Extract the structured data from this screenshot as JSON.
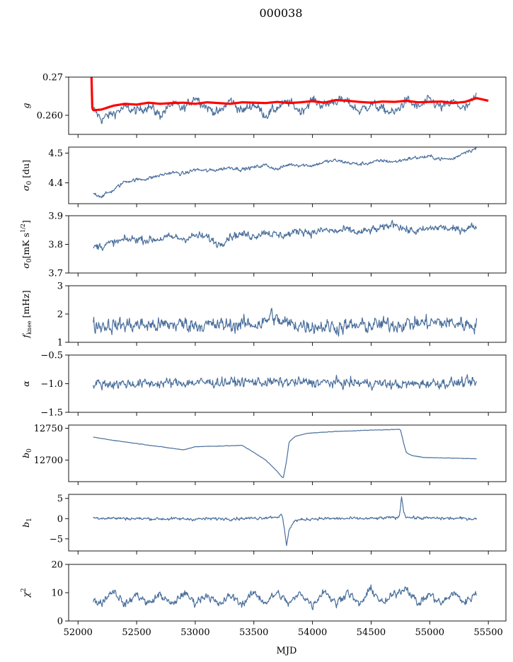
{
  "figure_title": "000038",
  "chart_data": {
    "type": "line",
    "xlabel": "MJD",
    "xlim": [
      51920,
      55650
    ],
    "xticks": [
      52000,
      52500,
      53000,
      53500,
      54000,
      54500,
      55000,
      55500
    ],
    "panels": [
      {
        "id": "g",
        "ylabel": "g",
        "ylim": [
          0.255,
          0.27
        ],
        "yticks": [
          {
            "v": 0.26,
            "t": "0.260"
          },
          {
            "v": 0.27,
            "t": "0.27"
          }
        ],
        "series": [
          {
            "style": "noisy",
            "color": "#4a6f9c",
            "x": [
              52130,
              52200,
              52300,
              52400,
              52500,
              52600,
              52700,
              52800,
              52900,
              53000,
              53100,
              53200,
              53300,
              53400,
              53500,
              53600,
              53700,
              53800,
              53900,
              54000,
              54100,
              54200,
              54300,
              54400,
              54500,
              54600,
              54700,
              54800,
              54900,
              55000,
              55100,
              55200,
              55300,
              55400
            ],
            "y": [
              0.2615,
              0.259,
              0.2605,
              0.262,
              0.261,
              0.2625,
              0.26,
              0.263,
              0.2615,
              0.265,
              0.262,
              0.2605,
              0.264,
              0.261,
              0.263,
              0.26,
              0.262,
              0.2635,
              0.261,
              0.264,
              0.2625,
              0.264,
              0.2635,
              0.261,
              0.263,
              0.2615,
              0.2605,
              0.264,
              0.262,
              0.264,
              0.262,
              0.2635,
              0.2615,
              0.265
            ],
            "noise": 0.0008
          },
          {
            "style": "smooth",
            "color": "#ff0000",
            "x": [
              52115,
              52118,
              52125,
              52135,
              52160,
              52200,
              52300,
              52400,
              52500,
              52600,
              52700,
              52800,
              52900,
              53000,
              53100,
              53200,
              53300,
              53400,
              53500,
              53600,
              53700,
              53800,
              53900,
              54000,
              54100,
              54200,
              54300,
              54400,
              54500,
              54600,
              54700,
              54800,
              54900,
              55000,
              55100,
              55200,
              55300,
              55400,
              55500
            ],
            "y": [
              0.27,
              0.2625,
              0.2615,
              0.2613,
              0.2614,
              0.2615,
              0.2625,
              0.263,
              0.2628,
              0.2633,
              0.263,
              0.2632,
              0.2633,
              0.263,
              0.2634,
              0.2632,
              0.263,
              0.2634,
              0.2633,
              0.2632,
              0.2635,
              0.2632,
              0.2634,
              0.2637,
              0.2633,
              0.264,
              0.2638,
              0.2635,
              0.2633,
              0.2636,
              0.2635,
              0.2638,
              0.2634,
              0.2635,
              0.2636,
              0.2632,
              0.2635,
              0.2645,
              0.2638
            ]
          }
        ]
      },
      {
        "id": "sigma0-du",
        "ylabel": "σ0 [du]",
        "ylim": [
          4.33,
          4.52
        ],
        "yticks": [
          {
            "v": 4.4,
            "t": "4.4"
          },
          {
            "v": 4.5,
            "t": "4.5"
          }
        ],
        "series": [
          {
            "style": "noisy",
            "color": "#4a6f9c",
            "x": [
              52130,
              52200,
              52300,
              52400,
              52500,
              52600,
              52700,
              52800,
              52900,
              53000,
              53100,
              53200,
              53300,
              53400,
              53500,
              53600,
              53700,
              53800,
              53900,
              54000,
              54100,
              54200,
              54300,
              54400,
              54500,
              54600,
              54700,
              54800,
              54900,
              55000,
              55100,
              55200,
              55300,
              55400
            ],
            "y": [
              4.365,
              4.355,
              4.375,
              4.405,
              4.41,
              4.415,
              4.425,
              4.435,
              4.43,
              4.445,
              4.44,
              4.445,
              4.452,
              4.445,
              4.452,
              4.46,
              4.445,
              4.462,
              4.46,
              4.458,
              4.47,
              4.475,
              4.468,
              4.462,
              4.468,
              4.475,
              4.47,
              4.48,
              4.485,
              4.488,
              4.48,
              4.48,
              4.505,
              4.515
            ],
            "noise": 0.004
          }
        ]
      },
      {
        "id": "sigma0-mk",
        "ylabel": "σ0[mK s^1/2]",
        "ylim": [
          3.7,
          3.9
        ],
        "yticks": [
          {
            "v": 3.7,
            "t": "3.7"
          },
          {
            "v": 3.8,
            "t": "3.8"
          },
          {
            "v": 3.9,
            "t": "3.9"
          }
        ],
        "series": [
          {
            "style": "noisy",
            "color": "#4a6f9c",
            "x": [
              52130,
              52200,
              52300,
              52400,
              52500,
              52600,
              52700,
              52800,
              52900,
              53000,
              53100,
              53200,
              53300,
              53400,
              53500,
              53600,
              53700,
              53800,
              53900,
              54000,
              54100,
              54200,
              54300,
              54400,
              54500,
              54600,
              54700,
              54800,
              54900,
              55000,
              55100,
              55200,
              55300,
              55400
            ],
            "y": [
              3.79,
              3.795,
              3.805,
              3.815,
              3.82,
              3.815,
              3.82,
              3.825,
              3.82,
              3.83,
              3.825,
              3.8,
              3.83,
              3.835,
              3.83,
              3.845,
              3.83,
              3.835,
              3.85,
              3.84,
              3.85,
              3.845,
              3.85,
              3.84,
              3.85,
              3.855,
              3.875,
              3.85,
              3.845,
              3.855,
              3.86,
              3.85,
              3.855,
              3.865
            ],
            "noise": 0.009
          }
        ]
      },
      {
        "id": "fknee",
        "ylabel": "f_knee [mHz]",
        "ylim": [
          1,
          3
        ],
        "yticks": [
          {
            "v": 1,
            "t": "1"
          },
          {
            "v": 2,
            "t": "2"
          },
          {
            "v": 3,
            "t": "3"
          }
        ],
        "series": [
          {
            "style": "noisy",
            "color": "#4a6f9c",
            "x": [
              52130,
              52300,
              52500,
              52700,
              52900,
              53100,
              53300,
              53500,
              53600,
              53650,
              53700,
              53800,
              54000,
              54200,
              54400,
              54600,
              54800,
              55000,
              55200,
              55400
            ],
            "y": [
              1.6,
              1.6,
              1.62,
              1.6,
              1.65,
              1.6,
              1.62,
              1.65,
              1.7,
              2.0,
              1.75,
              1.65,
              1.58,
              1.55,
              1.58,
              1.62,
              1.65,
              1.7,
              1.68,
              1.62
            ],
            "noise": 0.17
          }
        ]
      },
      {
        "id": "alpha",
        "ylabel": "α",
        "ylim": [
          -1.5,
          -0.5
        ],
        "yticks": [
          {
            "v": -1.5,
            "t": "−1.5"
          },
          {
            "v": -1.0,
            "t": "−1.0"
          },
          {
            "v": -0.5,
            "t": "−0.5"
          }
        ],
        "series": [
          {
            "style": "noisy",
            "color": "#4a6f9c",
            "x": [
              52130,
              52500,
              53000,
              53500,
              54000,
              54500,
              54750,
              55000,
              55400
            ],
            "y": [
              -1.0,
              -1.0,
              -0.98,
              -0.97,
              -0.98,
              -0.99,
              -1.02,
              -0.99,
              -0.98
            ],
            "noise": 0.055
          }
        ]
      },
      {
        "id": "b0",
        "ylabel": "b0",
        "ylim": [
          12666,
          12755
        ],
        "yticks": [
          {
            "v": 12700,
            "t": "12700"
          },
          {
            "v": 12750,
            "t": "12750"
          }
        ],
        "series": [
          {
            "style": "smooth",
            "color": "#4a6f9c",
            "x": [
              52130,
              52300,
              52500,
              52700,
              52900,
              53000,
              53200,
              53400,
              53500,
              53600,
              53700,
              53750,
              53780,
              53800,
              53850,
              53950,
              54200,
              54500,
              54700,
              54750,
              54780,
              54800,
              54850,
              54950,
              55200,
              55400
            ],
            "y": [
              12736,
              12731,
              12726,
              12721,
              12716,
              12721,
              12722,
              12723,
              12712,
              12700,
              12682,
              12671,
              12700,
              12728,
              12737,
              12742,
              12745,
              12747,
              12748,
              12748,
              12725,
              12712,
              12707,
              12704,
              12703,
              12702
            ],
            "noise": 0.3
          }
        ]
      },
      {
        "id": "b1",
        "ylabel": "b1",
        "ylim": [
          -8,
          6
        ],
        "yticks": [
          {
            "v": -5,
            "t": "−5"
          },
          {
            "v": 0,
            "t": "0"
          },
          {
            "v": 5,
            "t": "5"
          }
        ],
        "series": [
          {
            "style": "noisy",
            "color": "#4a6f9c",
            "x": [
              52130,
              52500,
              53000,
              53500,
              53700,
              53740,
              53760,
              53780,
              53800,
              53850,
              54000,
              54500,
              54740,
              54760,
              54780,
              54800,
              54850,
              55000,
              55400
            ],
            "y": [
              0.2,
              0.0,
              -0.1,
              0.1,
              0.5,
              0.8,
              -2.5,
              -7.0,
              -2.5,
              -0.5,
              0.0,
              0.0,
              0.3,
              5.5,
              1.5,
              0.5,
              0.2,
              0.1,
              0.0
            ],
            "noise": 0.25
          }
        ]
      },
      {
        "id": "chi2",
        "ylabel": "χ²",
        "ylim": [
          0,
          20
        ],
        "yticks": [
          {
            "v": 0,
            "t": "0"
          },
          {
            "v": 10,
            "t": "10"
          },
          {
            "v": 20,
            "t": "20"
          }
        ],
        "series": [
          {
            "style": "noisy",
            "color": "#4a6f9c",
            "x": [
              52130,
              52200,
              52300,
              52350,
              52400,
              52500,
              52600,
              52700,
              52800,
              52900,
              53000,
              53100,
              53200,
              53300,
              53400,
              53500,
              53600,
              53700,
              53800,
              53900,
              54000,
              54100,
              54200,
              54300,
              54400,
              54500,
              54600,
              54700,
              54800,
              54900,
              55000,
              55100,
              55200,
              55300,
              55400
            ],
            "y": [
              7,
              6.5,
              11,
              8.5,
              5.5,
              9.5,
              6,
              9.5,
              5.5,
              10,
              6.5,
              9.5,
              5.5,
              9,
              6,
              10,
              6.5,
              10,
              6,
              10,
              5.5,
              11,
              6,
              10.5,
              5.5,
              11.5,
              6,
              9.5,
              12,
              6,
              9.5,
              6,
              10,
              6.5,
              10
            ],
            "noise": 0.9
          }
        ]
      }
    ]
  }
}
